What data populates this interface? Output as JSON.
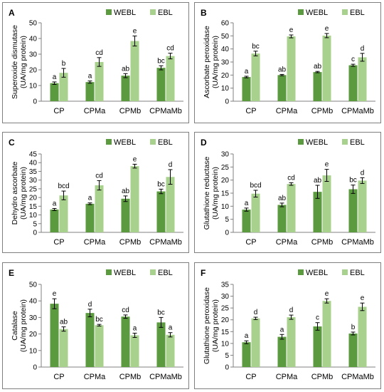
{
  "colors": {
    "WEBL": "#5b9a3e",
    "EBL": "#a9d18e",
    "axis": "#808080",
    "frame": "#7f7f7f"
  },
  "chart_data": [
    {
      "panel": "A",
      "type": "bar",
      "ylabel": "Superoxide dismutase (UA/mg protein)",
      "ylim": [
        0,
        50
      ],
      "ytick_step": 10,
      "categories": [
        "CP",
        "CPMa",
        "CPMb",
        "CPMaMb"
      ],
      "series": [
        {
          "name": "WEBL",
          "values": [
            11.5,
            12.2,
            16.3,
            21.3
          ],
          "errors": [
            0.8,
            0.7,
            1.3,
            1.3
          ],
          "letters": [
            "a",
            "a",
            "ab",
            "bc"
          ]
        },
        {
          "name": "EBL",
          "values": [
            18.1,
            25.0,
            38.4,
            28.8
          ],
          "errors": [
            2.8,
            2.8,
            3.2,
            1.8
          ],
          "letters": [
            "b",
            "cd",
            "e",
            "cd"
          ]
        }
      ],
      "legend": "top-right"
    },
    {
      "panel": "B",
      "type": "bar",
      "ylabel": "Ascorbate peroxidase (UA/mg protein)",
      "ylim": [
        0,
        60
      ],
      "ytick_step": 10,
      "categories": [
        "CP",
        "CPMa",
        "CPMb",
        "CPMaMb"
      ],
      "series": [
        {
          "name": "WEBL",
          "values": [
            18.5,
            20.0,
            22.3,
            27.5
          ],
          "errors": [
            0.6,
            0.5,
            0.5,
            0.8
          ],
          "letters": [
            "a",
            "ab",
            "ab",
            "c"
          ]
        },
        {
          "name": "EBL",
          "values": [
            36.5,
            49.6,
            50.2,
            33.6
          ],
          "errors": [
            1.8,
            1.1,
            1.6,
            3.0
          ],
          "letters": [
            "bc",
            "e",
            "e",
            "d"
          ]
        }
      ],
      "legend": "top-right"
    },
    {
      "panel": "C",
      "type": "bar",
      "ylabel": "Dehydro ascorbate (UA/mg protein)",
      "ylim": [
        0,
        45
      ],
      "ytick_step": 5,
      "categories": [
        "CP",
        "CPMa",
        "CPMb",
        "CPMaMb"
      ],
      "series": [
        {
          "name": "WEBL",
          "values": [
            13.1,
            16.4,
            19.3,
            23.5
          ],
          "errors": [
            0.6,
            0.5,
            1.6,
            1.3
          ],
          "letters": [
            "a",
            "a",
            "ab",
            "bc"
          ]
        },
        {
          "name": "EBL",
          "values": [
            21.2,
            27.0,
            38.0,
            31.8
          ],
          "errors": [
            2.5,
            2.7,
            1.1,
            4.2
          ],
          "letters": [
            "bcd",
            "cd",
            "e",
            "d"
          ]
        }
      ],
      "legend": "top-right"
    },
    {
      "panel": "D",
      "type": "bar",
      "ylabel": "Glutathione reductase (UA/mg protein)",
      "ylim": [
        0,
        30
      ],
      "ytick_step": 5,
      "categories": [
        "CP",
        "CPMa",
        "CPMb",
        "CPMaMb"
      ],
      "series": [
        {
          "name": "WEBL",
          "values": [
            8.7,
            10.5,
            15.5,
            16.5
          ],
          "errors": [
            0.6,
            0.7,
            2.5,
            1.6
          ],
          "letters": [
            "a",
            "ab",
            "ab",
            "bc"
          ]
        },
        {
          "name": "EBL",
          "values": [
            14.8,
            18.5,
            21.8,
            19.8
          ],
          "errors": [
            1.3,
            0.5,
            2.3,
            1.1
          ],
          "letters": [
            "bcd",
            "cd",
            "e",
            "d"
          ]
        }
      ],
      "legend": "top-right"
    },
    {
      "panel": "E",
      "type": "bar",
      "ylabel": "Catalase (UA/mg protein)",
      "ylim": [
        0,
        50
      ],
      "ytick_step": 10,
      "categories": [
        "CP",
        "CPMa",
        "CPMb",
        "CPMaMb"
      ],
      "series": [
        {
          "name": "WEBL",
          "values": [
            38.3,
            32.7,
            30.5,
            27.0
          ],
          "errors": [
            3.0,
            2.3,
            1.0,
            3.0
          ],
          "letters": [
            "e",
            "d",
            "cd",
            "bc"
          ]
        },
        {
          "name": "EBL",
          "values": [
            23.0,
            25.3,
            19.2,
            19.5
          ],
          "errors": [
            1.3,
            0.5,
            1.3,
            1.3
          ],
          "letters": [
            "ab",
            "bc",
            "a",
            "a"
          ]
        }
      ],
      "legend": "top-right"
    },
    {
      "panel": "F",
      "type": "bar",
      "ylabel": "Glutathione peroxidase (UA/mg protein)",
      "ylim": [
        0,
        35
      ],
      "ytick_step": 5,
      "categories": [
        "CP",
        "CPMa",
        "CPMb",
        "CPMaMb"
      ],
      "series": [
        {
          "name": "WEBL",
          "values": [
            10.5,
            12.8,
            17.2,
            14.2
          ],
          "errors": [
            0.6,
            1.0,
            1.6,
            0.6
          ],
          "letters": [
            "a",
            "a",
            "c",
            "b"
          ]
        },
        {
          "name": "EBL",
          "values": [
            20.6,
            21.1,
            28.0,
            25.5
          ],
          "errors": [
            0.5,
            0.9,
            0.9,
            1.6
          ],
          "letters": [
            "d",
            "d",
            "e",
            "e"
          ]
        }
      ],
      "legend": "top-right"
    }
  ]
}
